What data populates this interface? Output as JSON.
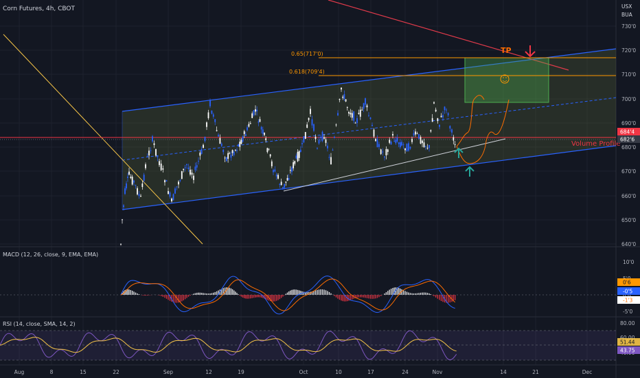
{
  "header": {
    "title": "Corn Futures, 4h, CBOT"
  },
  "price_axis": {
    "currency": "USX",
    "unit": "BUA",
    "labels": [
      "730'0",
      "720'0",
      "710'0",
      "700'0",
      "690'0",
      "680'0",
      "670'0",
      "660'0",
      "650'0",
      "640'0"
    ],
    "tag_red": "684'4",
    "tag_gray": "682'6",
    "tag_red_color": "#f23645",
    "tag_gray_color": "#363a45"
  },
  "annotations": {
    "fib_065": "0.65(717'0)",
    "fib_0618": "0.618(709'4)",
    "tp": "TP",
    "volume_profile": "Volume Profile"
  },
  "macd": {
    "label": "MACD (12, 26, close, 9, EMA, EMA)",
    "axis": [
      "10'0",
      "5'0",
      "0'0",
      "-5'0"
    ],
    "tag_hist": "0'6",
    "tag_macd": "-0'5",
    "tag_signal": "-1'3",
    "color_macd": "#2962ff",
    "color_signal": "#ff6d00"
  },
  "rsi": {
    "label": "RSI (14, close, SMA, 14, 2)",
    "axis": [
      "80.00",
      "60.00",
      "40.00"
    ],
    "tag_ma": "51.44",
    "tag_rsi": "43.75",
    "color_rsi": "#7e57c2",
    "color_ma": "#f7c548"
  },
  "time_axis": [
    "Aug",
    "8",
    "15",
    "22",
    "Sep",
    "12",
    "19",
    "Oct",
    "10",
    "17",
    "24",
    "Nov",
    "14",
    "21",
    "Dec"
  ],
  "colors": {
    "background": "#131722",
    "up_candle": "#2962ff",
    "down_candle": "#ffffff",
    "channel_line": "#2962ff",
    "fib_line": "#ff9800",
    "tp_box": "#4caf50",
    "resistance": "#f23645"
  }
}
